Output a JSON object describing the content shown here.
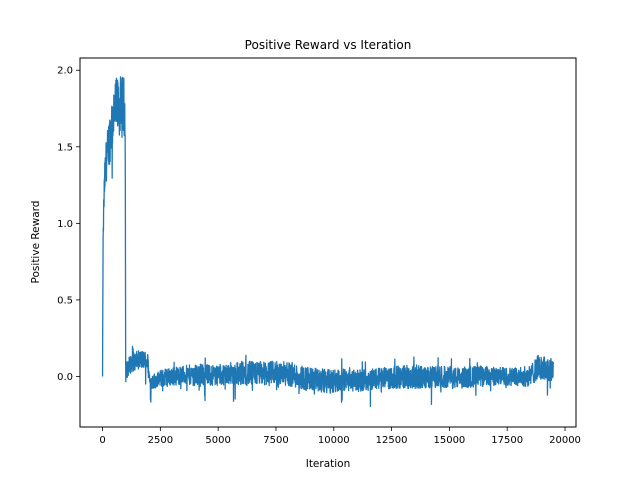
{
  "chart_data": {
    "type": "line",
    "title": "Positive Reward vs Iteration",
    "xlabel": "Iteration",
    "ylabel": "Positive Reward",
    "xlim": [
      -975,
      20475
    ],
    "ylim": [
      -0.33,
      2.08
    ],
    "xticks": [
      0,
      2500,
      5000,
      7500,
      10000,
      12500,
      15000,
      17500,
      20000
    ],
    "xtick_labels": [
      "0",
      "2500",
      "5000",
      "7500",
      "10000",
      "12500",
      "15000",
      "17500",
      "20000"
    ],
    "yticks": [
      0.0,
      0.5,
      1.0,
      1.5,
      2.0
    ],
    "ytick_labels": [
      "0.0",
      "0.5",
      "1.0",
      "1.5",
      "2.0"
    ],
    "grid": false,
    "legend": "none",
    "series": [
      {
        "color": "#1f77b4",
        "x": [
          0,
          20,
          50,
          100,
          150,
          200,
          300,
          400,
          500,
          600,
          700,
          800,
          900,
          980,
          1000,
          1010,
          1100,
          1200,
          1400,
          1600,
          1800,
          1950,
          2000,
          2050,
          2100,
          2200,
          2400,
          2600,
          3000,
          3500,
          4000,
          4500,
          5000,
          5500,
          6000,
          6500,
          7000,
          7500,
          8000,
          8500,
          9000,
          9500,
          10000,
          10500,
          11000,
          11500,
          12000,
          12500,
          13000,
          13500,
          14000,
          14500,
          15000,
          15500,
          16000,
          16500,
          17000,
          17500,
          18000,
          18500,
          18800,
          19000,
          19200,
          19400,
          19500
        ],
        "y": [
          0.0,
          0.8,
          1.1,
          1.3,
          1.4,
          1.45,
          1.55,
          1.65,
          1.72,
          1.75,
          1.76,
          1.76,
          1.76,
          1.74,
          0.05,
          0.02,
          0.06,
          0.08,
          0.1,
          0.11,
          0.11,
          0.1,
          0.02,
          -0.03,
          -0.04,
          -0.03,
          -0.02,
          -0.01,
          0.0,
          0.01,
          0.01,
          0.01,
          0.01,
          0.02,
          0.02,
          0.02,
          0.02,
          0.02,
          0.02,
          0.0,
          -0.02,
          -0.03,
          -0.03,
          -0.02,
          -0.03,
          -0.02,
          -0.01,
          -0.01,
          0.0,
          0.0,
          -0.01,
          0.0,
          -0.01,
          -0.01,
          0.0,
          0.0,
          0.0,
          0.0,
          0.0,
          0.0,
          0.06,
          0.05,
          0.05,
          0.04,
          0.05
        ],
        "band": [
          0.0,
          0.08,
          0.1,
          0.12,
          0.14,
          0.15,
          0.17,
          0.19,
          0.2,
          0.2,
          0.2,
          0.2,
          0.2,
          0.2,
          0.07,
          0.06,
          0.06,
          0.06,
          0.06,
          0.06,
          0.06,
          0.06,
          0.06,
          0.05,
          0.05,
          0.05,
          0.05,
          0.06,
          0.06,
          0.06,
          0.07,
          0.07,
          0.07,
          0.07,
          0.08,
          0.08,
          0.08,
          0.08,
          0.08,
          0.08,
          0.08,
          0.08,
          0.08,
          0.07,
          0.07,
          0.07,
          0.07,
          0.07,
          0.08,
          0.08,
          0.07,
          0.07,
          0.07,
          0.07,
          0.07,
          0.07,
          0.06,
          0.06,
          0.06,
          0.07,
          0.08,
          0.08,
          0.08,
          0.08,
          0.08
        ]
      }
    ]
  }
}
